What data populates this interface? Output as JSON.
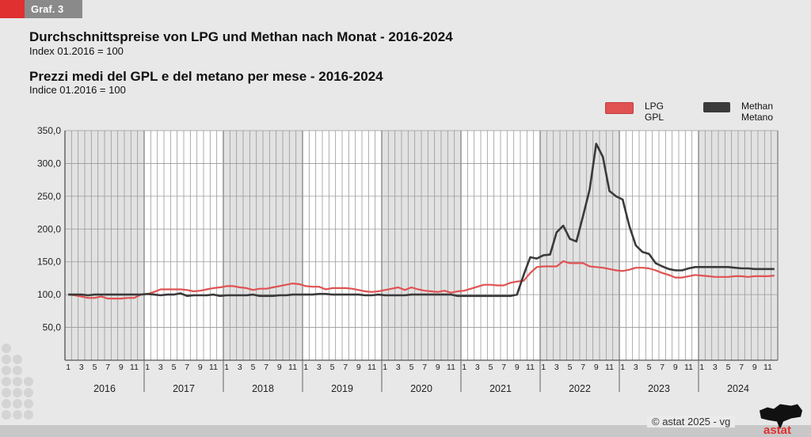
{
  "badge": {
    "label": "Graf. 3",
    "color": "#e03030"
  },
  "titles": {
    "title_de": "Durchschnittspreise von LPG und Methan nach Monat - 2016-2024",
    "subtitle_de": "Index 01.2016 = 100",
    "title_it": "Prezzi medi del GPL e del metano per mese - 2016-2024",
    "subtitle_it": "Indice 01.2016 = 100"
  },
  "footer": {
    "copyright": "©  astat 2025 - vg",
    "logo_text": "astat"
  },
  "chart_data": {
    "type": "line",
    "title": "Durchschnittspreise von LPG und Methan nach Monat - 2016-2024 / Prezzi medi del GPL e del metano per mese - 2016-2024",
    "ylabel": "",
    "ylim": [
      0,
      350
    ],
    "yticks": [
      "50,0",
      "100,0",
      "150,0",
      "200,0",
      "250,0",
      "300,0",
      "350,0"
    ],
    "grid": true,
    "legend_position": "top-right",
    "years": [
      "2016",
      "2017",
      "2018",
      "2019",
      "2020",
      "2021",
      "2022",
      "2023",
      "2024"
    ],
    "month_tick_labels": [
      "1",
      "3",
      "5",
      "7",
      "9",
      "11"
    ],
    "series": [
      {
        "name": "LPG",
        "name_it": "GPL",
        "color": "#e05252",
        "values": [
          100,
          99,
          97,
          95,
          95,
          97,
          94,
          94,
          94,
          95,
          95,
          100,
          101,
          104,
          108,
          108,
          108,
          108,
          107,
          105,
          106,
          108,
          110,
          111,
          113,
          113,
          111,
          110,
          107,
          109,
          109,
          111,
          113,
          115,
          117,
          116,
          113,
          112,
          112,
          108,
          110,
          110,
          110,
          109,
          107,
          105,
          104,
          105,
          107,
          109,
          111,
          107,
          111,
          108,
          106,
          105,
          104,
          106,
          103,
          105,
          106,
          109,
          112,
          115,
          115,
          114,
          114,
          118,
          120,
          121,
          133,
          142,
          143,
          143,
          143,
          151,
          148,
          148,
          148,
          143,
          142,
          141,
          139,
          137,
          136,
          138,
          141,
          141,
          140,
          137,
          133,
          130,
          126,
          126,
          128,
          130,
          129,
          128,
          127,
          127,
          127,
          128,
          128,
          127,
          128,
          128,
          128,
          129
        ]
      },
      {
        "name": "Methan",
        "name_it": "Metano",
        "color": "#3a3a3a",
        "values": [
          100,
          100,
          100,
          99,
          100,
          100,
          100,
          100,
          100,
          100,
          100,
          100,
          101,
          100,
          99,
          100,
          100,
          102,
          98,
          99,
          99,
          99,
          100,
          98,
          99,
          99,
          99,
          99,
          100,
          98,
          98,
          98,
          99,
          99,
          100,
          100,
          100,
          100,
          101,
          101,
          100,
          100,
          100,
          100,
          100,
          99,
          99,
          100,
          99,
          99,
          99,
          99,
          100,
          100,
          100,
          100,
          100,
          100,
          100,
          98,
          98,
          98,
          98,
          98,
          98,
          98,
          98,
          98,
          100,
          130,
          157,
          155,
          160,
          161,
          195,
          205,
          185,
          181,
          220,
          260,
          330,
          310,
          258,
          250,
          245,
          205,
          175,
          165,
          162,
          148,
          143,
          139,
          137,
          137,
          140,
          142,
          142,
          142,
          142,
          142,
          142,
          141,
          140,
          140,
          139,
          139,
          139,
          139
        ]
      }
    ]
  }
}
